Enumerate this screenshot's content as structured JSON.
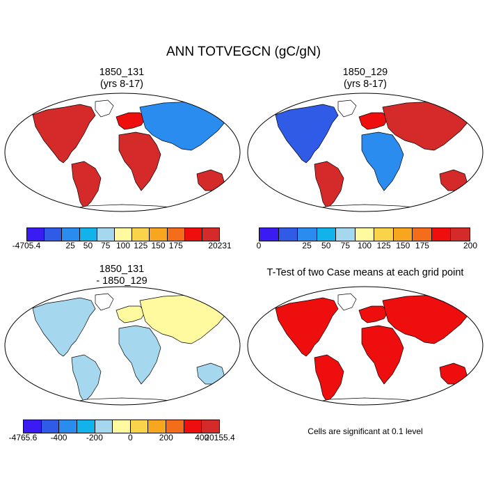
{
  "figure": {
    "title": "ANN TOTVEGCN (gC/gN)",
    "palette": [
      "#3a1cf2",
      "#2f5be6",
      "#2b8cf0",
      "#12b3ea",
      "#a5d8ee",
      "#fff9a0",
      "#f9d44b",
      "#f7a61f",
      "#f36d1a",
      "#ee0e0e",
      "#d42a2a"
    ]
  },
  "panels": [
    {
      "id": "case1",
      "title_line1": "1850_131",
      "title_line2": "(yrs 8-17)",
      "map_icon": "world-map-robinson-icon",
      "colorbar_labels": [
        "-4705.4",
        "25",
        "50",
        "75",
        "100",
        "125",
        "150",
        "175",
        "20231"
      ]
    },
    {
      "id": "case2",
      "title_line1": "1850_129",
      "title_line2": "(yrs 8-17)",
      "map_icon": "world-map-robinson-icon",
      "colorbar_labels": [
        "0",
        "25",
        "50",
        "75",
        "100",
        "125",
        "150",
        "175",
        "200"
      ]
    },
    {
      "id": "difference",
      "title_line1": "1850_131",
      "title_line2": "- 1850_129",
      "map_icon": "world-map-robinson-icon",
      "colorbar_labels": [
        "-4765.6",
        "-400",
        "-200",
        "0",
        "200",
        "400",
        "20155.4"
      ]
    },
    {
      "id": "ttest",
      "title_line1": "T-Test of two Case means at each grid point",
      "map_icon": "world-map-robinson-icon",
      "note": "Cells are significant at 0.1 level",
      "fill_color": "#ee0e0e"
    }
  ]
}
